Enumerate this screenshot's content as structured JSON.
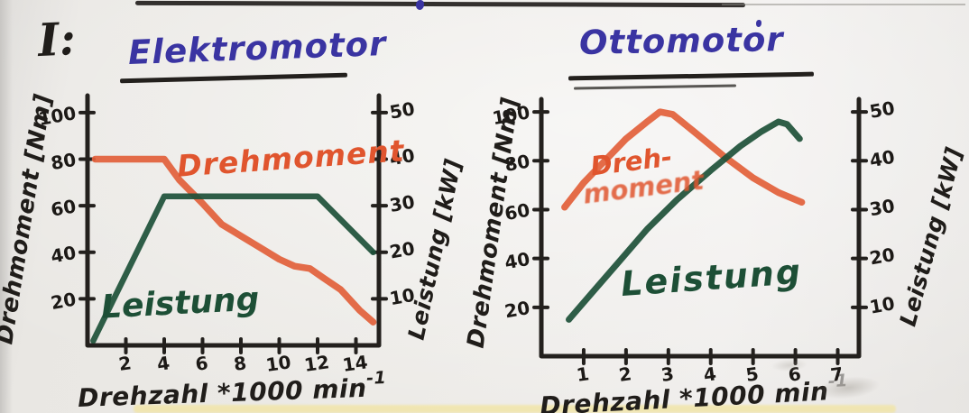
{
  "section_label": "I:",
  "colors": {
    "marker_black": "#23201d",
    "marker_blue": "#3a34a2",
    "marker_orange": "#e2603a",
    "marker_green": "#1d5038",
    "board": "#eceae6",
    "reflection_strip": "#f1e5a9"
  },
  "chart_data": [
    {
      "type": "line",
      "title": "Elektromotor",
      "grid": false,
      "legend_position": "labels-on-curves",
      "x_axis": {
        "label": "Drehzahl *1000 min",
        "label_sup": "-1",
        "ticks": [
          2,
          4,
          6,
          8,
          10,
          12,
          14
        ],
        "range": [
          0,
          15.2
        ]
      },
      "y_left": {
        "label": "Drehmoment [Nm]",
        "ticks": [
          20,
          40,
          60,
          80,
          100
        ],
        "range": [
          0,
          105
        ]
      },
      "y_right": {
        "label": "Leistung [kW]",
        "ticks": [
          10,
          20,
          30,
          40,
          50
        ],
        "range": [
          0,
          52.5
        ]
      },
      "series": [
        {
          "name": "Drehmoment",
          "key": "drehmoment-curve",
          "axis": "left",
          "unit": "Nm",
          "color": "#e2603a",
          "width": 7.5,
          "x": [
            0.4,
            1.5,
            4,
            4.8,
            6,
            7,
            8,
            9,
            10,
            10.8,
            11.6,
            12.3,
            13.2,
            14.2,
            14.9
          ],
          "y": [
            80,
            80,
            80,
            71,
            61,
            52,
            47,
            42,
            37,
            34,
            33,
            29,
            24,
            15,
            10
          ]
        },
        {
          "name": "Leistung",
          "key": "leistung-curve",
          "axis": "right",
          "unit": "kW",
          "color": "#1d5038",
          "width": 6.5,
          "x": [
            0.3,
            4,
            12,
            14.9
          ],
          "y": [
            1,
            32,
            32,
            20
          ]
        }
      ]
    },
    {
      "type": "line",
      "title": "Ottomotor",
      "grid": false,
      "legend_position": "labels-on-curves",
      "x_axis": {
        "label": "Drehzahl *1000 min",
        "label_sup": "-1",
        "ticks": [
          1,
          2,
          3,
          4,
          5,
          6,
          7
        ],
        "range": [
          0,
          7.5
        ]
      },
      "y_left": {
        "label": "Drehmoment [Nm]",
        "ticks": [
          20,
          40,
          60,
          80,
          100
        ],
        "range": [
          0,
          103
        ]
      },
      "y_right": {
        "label": "Leistung [kW]",
        "ticks": [
          10,
          20,
          30,
          40,
          50
        ],
        "range": [
          0,
          51.5
        ]
      },
      "series": [
        {
          "name": "Drehmoment",
          "label_line1": "Dreh-",
          "label_line2": "moment",
          "key": "drehmoment-curve",
          "axis": "left",
          "unit": "Nm",
          "color": "#e2603a",
          "width": 7.5,
          "x": [
            0.55,
            1,
            1.5,
            2,
            2.5,
            2.8,
            3.1,
            3.6,
            4.3,
            5,
            5.6,
            6.15
          ],
          "y": [
            61,
            71,
            80,
            89,
            96,
            100,
            99,
            92,
            82,
            73,
            67,
            63
          ]
        },
        {
          "name": "Leistung",
          "key": "leistung-curve",
          "axis": "right",
          "unit": "kW",
          "color": "#1d5038",
          "width": 7,
          "x": [
            0.65,
            1.2,
            1.8,
            2.5,
            3.2,
            4,
            4.7,
            5.2,
            5.6,
            5.8,
            6.1
          ],
          "y": [
            7.5,
            13,
            19,
            26,
            32,
            38,
            43,
            46,
            48,
            47.5,
            44.5
          ]
        }
      ]
    }
  ]
}
